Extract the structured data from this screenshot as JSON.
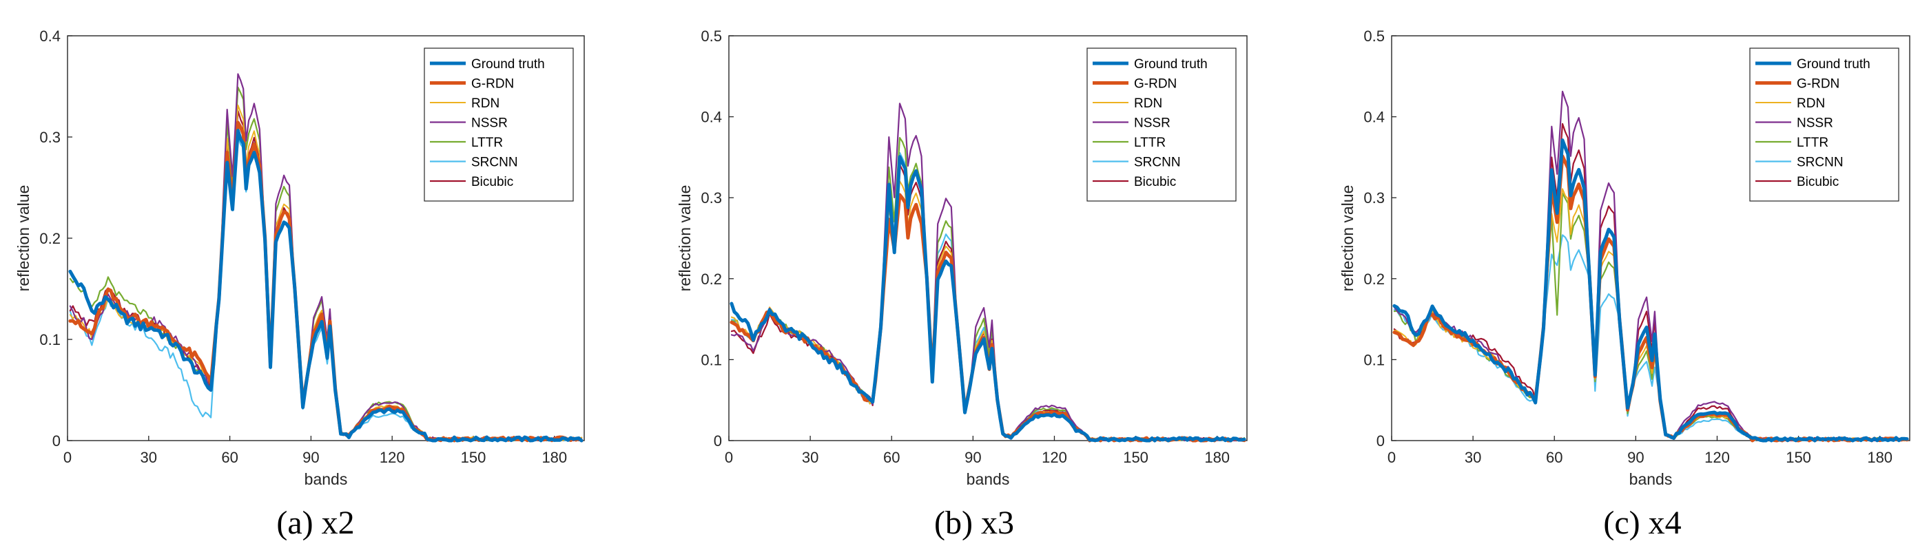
{
  "colors": {
    "Ground truth": "#0072BD",
    "G-RDN": "#D95319",
    "RDN": "#EDB120",
    "NSSR": "#7E2F8E",
    "LTTR": "#77AC30",
    "SRCNN": "#4DBEEE",
    "Bicubic": "#A2142F"
  },
  "legend_entries": [
    "Ground truth",
    "G-RDN",
    "RDN",
    "NSSR",
    "LTTR",
    "SRCNN",
    "Bicubic"
  ],
  "chart_data": [
    {
      "type": "line",
      "title": "",
      "caption": "(a) x2",
      "xlabel": "bands",
      "ylabel": "reflection value",
      "xlim": [
        0,
        191
      ],
      "ylim": [
        0,
        0.4
      ],
      "xticks": [
        "0",
        "30",
        "60",
        "90",
        "120",
        "150",
        "180"
      ],
      "yticks": [
        "0",
        "0.1",
        "0.2",
        "0.3",
        "0.4"
      ],
      "legend_position": "top-right",
      "series": [
        {
          "name": "Ground truth",
          "peaks": [
            0.229,
            0.305,
            0.285,
            0.073,
            0.217,
            0.034,
            0.117,
            0.112,
            0.03
          ],
          "start": [
            0.165,
            0.128,
            0.141,
            0.11,
            0.05
          ]
        },
        {
          "name": "G-RDN",
          "peaks": [
            0.235,
            0.315,
            0.292,
            0.075,
            0.227,
            0.035,
            0.125,
            0.118,
            0.033
          ],
          "start": [
            0.122,
            0.105,
            0.148,
            0.115,
            0.06
          ]
        },
        {
          "name": "RDN",
          "peaks": [
            0.245,
            0.33,
            0.305,
            0.078,
            0.235,
            0.037,
            0.13,
            0.122,
            0.035
          ],
          "start": [
            0.125,
            0.105,
            0.143,
            0.112,
            0.058
          ]
        },
        {
          "name": "NSSR",
          "peaks": [
            0.26,
            0.362,
            0.332,
            0.08,
            0.261,
            0.04,
            0.143,
            0.13,
            0.038
          ],
          "start": [
            0.13,
            0.1,
            0.146,
            0.118,
            0.055
          ]
        },
        {
          "name": "LTTR",
          "peaks": [
            0.255,
            0.35,
            0.318,
            0.08,
            0.25,
            0.04,
            0.14,
            0.128,
            0.039
          ],
          "start": [
            0.163,
            0.128,
            0.16,
            0.112,
            0.052
          ]
        },
        {
          "name": "SRCNN",
          "peaks": [
            0.24,
            0.3,
            0.295,
            0.072,
            0.218,
            0.03,
            0.11,
            0.1,
            0.026
          ],
          "start": [
            0.125,
            0.095,
            0.138,
            0.095,
            0.022
          ]
        },
        {
          "name": "Bicubic",
          "peaks": [
            0.245,
            0.325,
            0.298,
            0.075,
            0.23,
            0.035,
            0.125,
            0.12,
            0.032
          ],
          "start": [
            0.132,
            0.115,
            0.15,
            0.115,
            0.055
          ]
        }
      ]
    },
    {
      "type": "line",
      "title": "",
      "caption": "(b) x3",
      "xlabel": "bands",
      "ylabel": "reflection value",
      "xlim": [
        0,
        191
      ],
      "ylim": [
        0,
        0.5
      ],
      "xticks": [
        "0",
        "30",
        "60",
        "90",
        "120",
        "150",
        "180"
      ],
      "yticks": [
        "0",
        "0.1",
        "0.2",
        "0.3",
        "0.4",
        "0.5"
      ],
      "legend_position": "top-right",
      "series": [
        {
          "name": "Ground truth",
          "peaks": [
            0.232,
            0.35,
            0.333,
            0.073,
            0.222,
            0.035,
            0.125,
            0.115,
            0.032
          ],
          "start": [
            0.165,
            0.128,
            0.16,
            0.11,
            0.045
          ]
        },
        {
          "name": "G-RDN",
          "peaks": [
            0.235,
            0.305,
            0.29,
            0.078,
            0.232,
            0.037,
            0.128,
            0.118,
            0.035
          ],
          "start": [
            0.148,
            0.125,
            0.16,
            0.112,
            0.045
          ]
        },
        {
          "name": "RDN",
          "peaks": [
            0.245,
            0.32,
            0.305,
            0.08,
            0.24,
            0.038,
            0.135,
            0.125,
            0.036
          ],
          "start": [
            0.15,
            0.128,
            0.162,
            0.115,
            0.046
          ]
        },
        {
          "name": "NSSR",
          "peaks": [
            0.3,
            0.415,
            0.378,
            0.085,
            0.298,
            0.042,
            0.165,
            0.15,
            0.043
          ],
          "start": [
            0.135,
            0.11,
            0.16,
            0.118,
            0.047
          ]
        },
        {
          "name": "LTTR",
          "peaks": [
            0.27,
            0.375,
            0.342,
            0.082,
            0.27,
            0.04,
            0.15,
            0.14,
            0.04
          ],
          "start": [
            0.15,
            0.128,
            0.163,
            0.115,
            0.046
          ]
        },
        {
          "name": "SRCNN",
          "peaks": [
            0.255,
            0.355,
            0.335,
            0.078,
            0.255,
            0.038,
            0.14,
            0.13,
            0.038
          ],
          "start": [
            0.148,
            0.128,
            0.16,
            0.113,
            0.046
          ]
        },
        {
          "name": "Bicubic",
          "peaks": [
            0.25,
            0.34,
            0.32,
            0.08,
            0.245,
            0.038,
            0.135,
            0.125,
            0.037
          ],
          "start": [
            0.135,
            0.11,
            0.155,
            0.115,
            0.047
          ]
        }
      ]
    },
    {
      "type": "line",
      "title": "",
      "caption": "(c) x4",
      "xlabel": "bands",
      "ylabel": "reflection value",
      "xlim": [
        0,
        191
      ],
      "ylim": [
        0,
        0.5
      ],
      "xticks": [
        "0",
        "30",
        "60",
        "90",
        "120",
        "150",
        "180"
      ],
      "yticks": [
        "0",
        "0.1",
        "0.2",
        "0.3",
        "0.4",
        "0.5"
      ],
      "legend_position": "top-right",
      "series": [
        {
          "name": "Ground truth",
          "peaks": [
            0.28,
            0.37,
            0.335,
            0.08,
            0.26,
            0.04,
            0.14,
            0.13,
            0.035
          ],
          "start": [
            0.17,
            0.13,
            0.162,
            0.112,
            0.05
          ]
        },
        {
          "name": "G-RDN",
          "peaks": [
            0.27,
            0.35,
            0.318,
            0.078,
            0.248,
            0.038,
            0.128,
            0.122,
            0.033
          ],
          "start": [
            0.135,
            0.118,
            0.158,
            0.113,
            0.05
          ]
        },
        {
          "name": "RDN",
          "peaks": [
            0.245,
            0.31,
            0.29,
            0.075,
            0.235,
            0.036,
            0.118,
            0.112,
            0.031
          ],
          "start": [
            0.135,
            0.118,
            0.156,
            0.112,
            0.048
          ]
        },
        {
          "name": "NSSR",
          "peaks": [
            0.33,
            0.43,
            0.4,
            0.09,
            0.317,
            0.048,
            0.177,
            0.16,
            0.047
          ],
          "start": [
            0.165,
            0.13,
            0.163,
            0.118,
            0.05
          ]
        },
        {
          "name": "LTTR",
          "peaks": [
            0.155,
            0.305,
            0.278,
            0.072,
            0.22,
            0.034,
            0.11,
            0.105,
            0.03
          ],
          "start": [
            0.16,
            0.125,
            0.158,
            0.11,
            0.047
          ]
        },
        {
          "name": "SRCNN",
          "peaks": [
            0.215,
            0.255,
            0.235,
            0.06,
            0.182,
            0.03,
            0.098,
            0.09,
            0.026
          ],
          "start": [
            0.165,
            0.128,
            0.156,
            0.108,
            0.045
          ]
        },
        {
          "name": "Bicubic",
          "peaks": [
            0.3,
            0.39,
            0.36,
            0.085,
            0.29,
            0.045,
            0.16,
            0.15,
            0.042
          ],
          "start": [
            0.135,
            0.12,
            0.16,
            0.125,
            0.055
          ]
        }
      ]
    }
  ]
}
